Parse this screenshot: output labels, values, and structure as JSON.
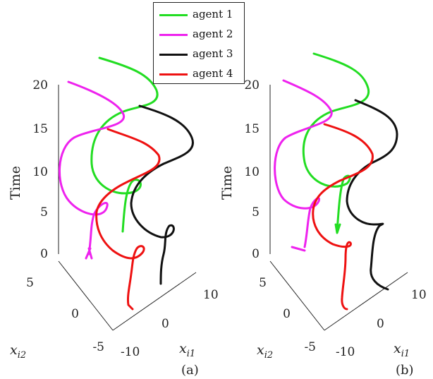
{
  "chart_data": [
    {
      "type": "line3d",
      "panel_label": "(a)",
      "zlabel": "Time",
      "xlabel": "x_{i1}",
      "ylabel": "x_{i2}",
      "z_ticks": [
        "0",
        "5",
        "10",
        "15",
        "20"
      ],
      "x_ticks": [
        "-10",
        "0",
        "10"
      ],
      "y_ticks": [
        "-5",
        "0",
        "5"
      ],
      "series": [
        {
          "name": "agent 1",
          "color": "#22dd22"
        },
        {
          "name": "agent 2",
          "color": "#ee22ee"
        },
        {
          "name": "agent 3",
          "color": "#111111"
        },
        {
          "name": "agent 4",
          "color": "#ee1111"
        }
      ]
    },
    {
      "type": "line3d",
      "panel_label": "(b)",
      "zlabel": "Time",
      "xlabel": "x_{i1}",
      "ylabel": "x_{i2}",
      "z_ticks": [
        "0",
        "5",
        "10",
        "15",
        "20"
      ],
      "x_ticks": [
        "-10",
        "0",
        "10"
      ],
      "y_ticks": [
        "-5",
        "0",
        "5"
      ],
      "series": [
        {
          "name": "agent 1",
          "color": "#22dd22"
        },
        {
          "name": "agent 2",
          "color": "#ee22ee"
        },
        {
          "name": "agent 3",
          "color": "#111111"
        },
        {
          "name": "agent 4",
          "color": "#ee1111"
        }
      ]
    }
  ],
  "legend": [
    {
      "label": "agent 1",
      "color": "#22dd22"
    },
    {
      "label": "agent 2",
      "color": "#ee22ee"
    },
    {
      "label": "agent 3",
      "color": "#111111"
    },
    {
      "label": "agent 4",
      "color": "#ee1111"
    }
  ]
}
